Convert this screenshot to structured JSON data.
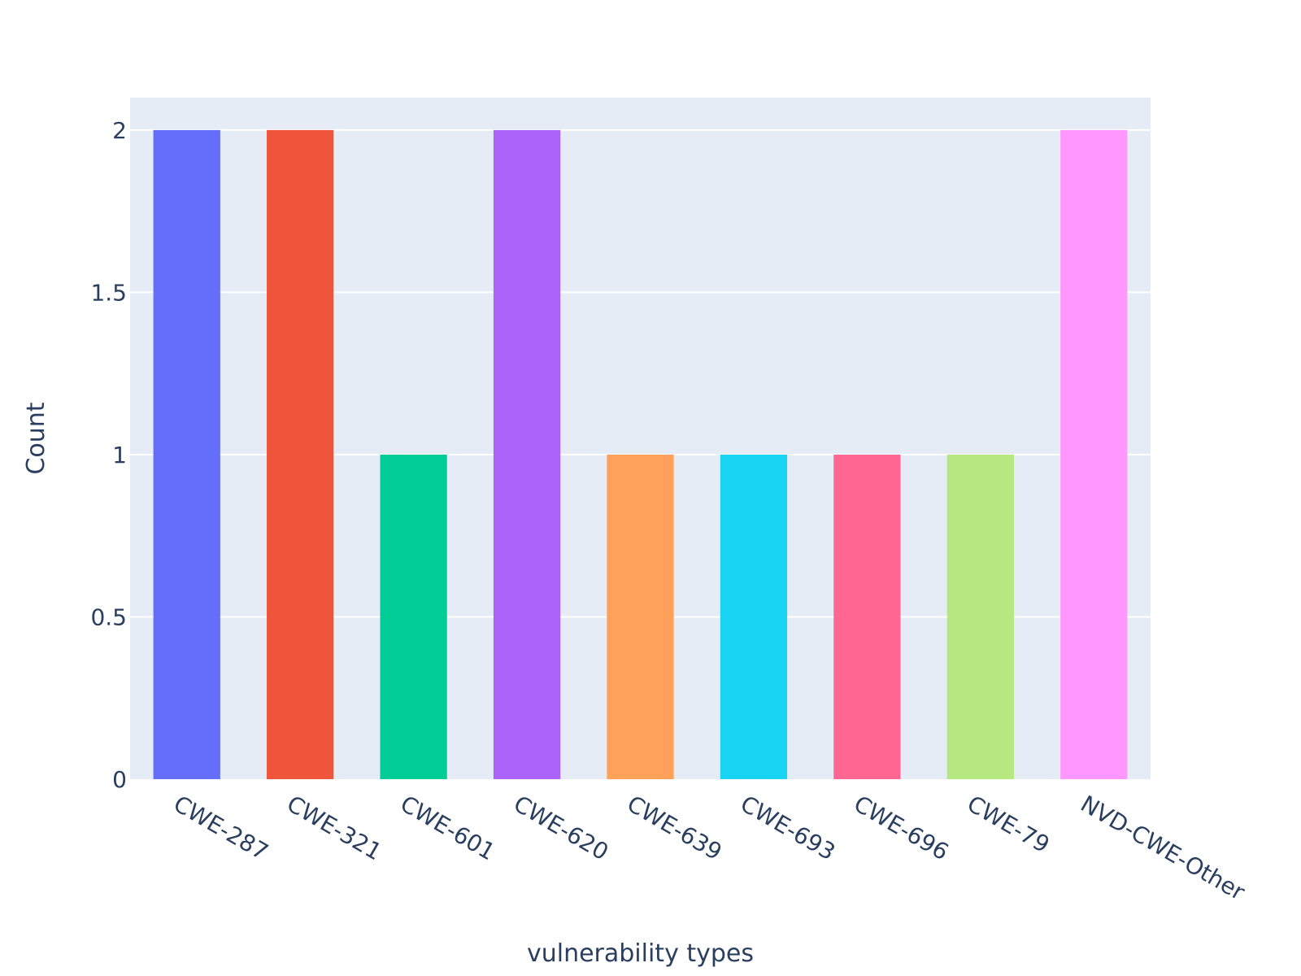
{
  "chart_data": {
    "type": "bar",
    "categories": [
      "CWE-287",
      "CWE-321",
      "CWE-601",
      "CWE-620",
      "CWE-639",
      "CWE-693",
      "CWE-696",
      "CWE-79",
      "NVD-CWE-Other"
    ],
    "values": [
      2,
      2,
      1,
      2,
      1,
      1,
      1,
      1,
      2
    ],
    "colors": [
      "#636efa",
      "#ef553b",
      "#00cc96",
      "#ab63fa",
      "#ffa15a",
      "#19d3f3",
      "#ff6692",
      "#b6e880",
      "#ff97ff"
    ],
    "xlabel": "vulnerability types",
    "ylabel": "Count",
    "ylim": [
      0,
      2.1
    ],
    "yticks": [
      0,
      0.5,
      1,
      1.5,
      2
    ],
    "ytick_labels": [
      "0",
      "0.5",
      "1",
      "1.5",
      "2"
    ],
    "grid": true,
    "plot_background": "#e5ecf6",
    "legend": "none"
  }
}
